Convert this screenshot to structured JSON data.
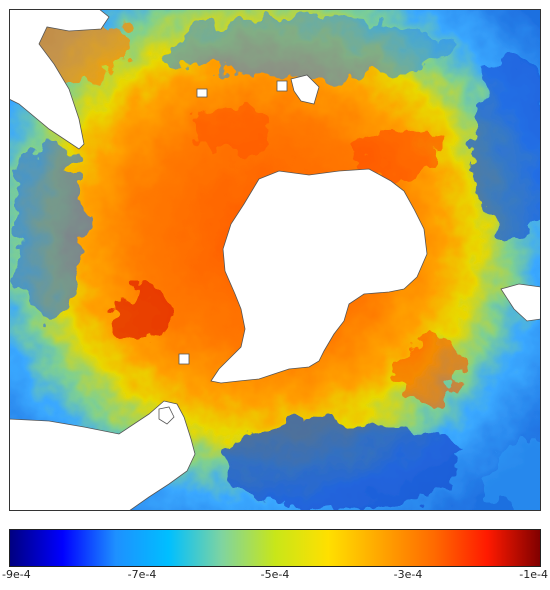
{
  "map": {
    "region": "Antarctica / Southern Ocean (polar stereographic)",
    "colors": {
      "land": "#ffffff",
      "coastline": "#555555",
      "frame": "#333333"
    }
  },
  "colorbar": {
    "min": -0.0009,
    "max": -0.0001,
    "stops": [
      "#00007f",
      "#0000ff",
      "#1e90ff",
      "#00bfff",
      "#7fd4a0",
      "#c8e619",
      "#ffe000",
      "#ffa500",
      "#ff6a00",
      "#ff1a00",
      "#7f0000"
    ],
    "ticks": [
      {
        "label": "-9e-4",
        "value": -0.0009
      },
      {
        "label": "-7e-4",
        "value": -0.0007
      },
      {
        "label": "-5e-4",
        "value": -0.0005
      },
      {
        "label": "-3e-4",
        "value": -0.0003
      },
      {
        "label": "-1e-4",
        "value": -0.0001
      }
    ]
  }
}
